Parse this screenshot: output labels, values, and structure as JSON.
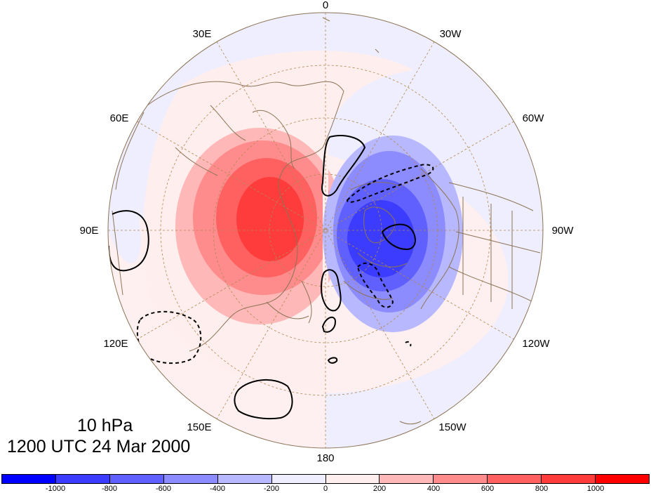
{
  "titles": {
    "level": "10 hPa",
    "time": "1200 UTC 24 Mar 2000"
  },
  "longitude_labels": [
    {
      "key": "lon-0",
      "text": "0"
    },
    {
      "key": "lon-30w",
      "text": "30W"
    },
    {
      "key": "lon-60w",
      "text": "60W"
    },
    {
      "key": "lon-90w",
      "text": "90W"
    },
    {
      "key": "lon-120w",
      "text": "120W"
    },
    {
      "key": "lon-150w",
      "text": "150W"
    },
    {
      "key": "lon-180",
      "text": "180"
    },
    {
      "key": "lon-150e",
      "text": "150E"
    },
    {
      "key": "lon-120e",
      "text": "120E"
    },
    {
      "key": "lon-90e",
      "text": "90E"
    },
    {
      "key": "lon-60e",
      "text": "60E"
    },
    {
      "key": "lon-30e",
      "text": "30E"
    }
  ],
  "colorbar": {
    "colors": [
      "#0000ff",
      "#3c3cff",
      "#6060ff",
      "#8c8cff",
      "#b8b8ff",
      "#eeeeff",
      "#ffeeee",
      "#ffb8b8",
      "#ff8c8c",
      "#ff6060",
      "#ff3c3c",
      "#ff0000"
    ],
    "labels": [
      "-1000",
      "-800",
      "-600",
      "-400",
      "-200",
      "0",
      "200",
      "400",
      "600",
      "800",
      "1000"
    ]
  },
  "colors": {
    "red_anomaly": "#ff3c3c",
    "blue_anomaly": "#3c3cff",
    "coastline": "#8b7355",
    "grid": "#b08850"
  }
}
